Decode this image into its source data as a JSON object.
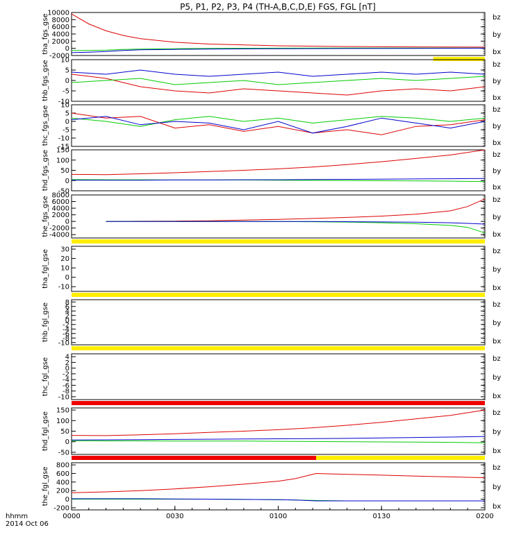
{
  "title": "P5, P1, P2, P3, P4 (TH-A,B,C,D,E) FGS, FGL [nT]",
  "x_axis": {
    "labels": [
      "0000",
      "0030",
      "0100",
      "0130",
      "0200"
    ],
    "corner_label": "hhmm",
    "date_label": "2014 Oct 06"
  },
  "legend": [
    {
      "name": "bz",
      "color": "#dd0000"
    },
    {
      "name": "by",
      "color": "#00cc00"
    },
    {
      "name": "bx",
      "color": "#0000cc"
    }
  ],
  "chart_data": [
    {
      "type": "line",
      "ylabel": "tha_fgs_gse",
      "yticks": [
        10000,
        8000,
        6000,
        4000,
        2000,
        0,
        -2000
      ],
      "ylim": [
        -2000,
        10000
      ],
      "x": [
        0,
        5,
        10,
        15,
        20,
        30,
        40,
        60,
        80,
        100,
        120
      ],
      "series": [
        {
          "name": "bz",
          "color": "#dd0000",
          "values": [
            9600,
            6800,
            4900,
            3600,
            2700,
            1700,
            1200,
            700,
            500,
            400,
            350
          ]
        },
        {
          "name": "by",
          "color": "#00cc00",
          "values": [
            -600,
            -600,
            -500,
            -300,
            -200,
            -100,
            0,
            50,
            80,
            100,
            100
          ]
        },
        {
          "name": "bx",
          "color": "#0000cc",
          "values": [
            -1200,
            -1100,
            -900,
            -600,
            -400,
            -300,
            -200,
            -100,
            -50,
            0,
            50
          ]
        }
      ],
      "status_bar": {
        "color": "#ffee00",
        "from": 105,
        "to": 120
      }
    },
    {
      "type": "line",
      "ylabel": "thb_fgs_gse",
      "yticks": [
        10,
        5,
        0,
        -5,
        -10
      ],
      "ylim": [
        -10,
        10
      ],
      "x": [
        0,
        10,
        20,
        30,
        40,
        50,
        60,
        70,
        80,
        90,
        100,
        110,
        120
      ],
      "series": [
        {
          "name": "bz",
          "color": "#dd0000",
          "values": [
            3,
            1,
            -3,
            -5,
            -6,
            -4,
            -5,
            -6,
            -7,
            -5,
            -4,
            -5,
            -3
          ]
        },
        {
          "name": "by",
          "color": "#00cc00",
          "values": [
            -1,
            0,
            1,
            -2,
            -1,
            0,
            -2,
            -1,
            0,
            1,
            0,
            1,
            2
          ]
        },
        {
          "name": "bx",
          "color": "#0000cc",
          "values": [
            4,
            3,
            5,
            3,
            2,
            3,
            4,
            2,
            3,
            4,
            3,
            4,
            3
          ]
        }
      ]
    },
    {
      "type": "line",
      "ylabel": "thc_fgs_gse",
      "yticks": [
        10,
        5,
        0,
        -5,
        -10,
        -15
      ],
      "ylim": [
        -15,
        10
      ],
      "x": [
        0,
        10,
        20,
        30,
        40,
        50,
        60,
        70,
        80,
        90,
        100,
        110,
        120
      ],
      "series": [
        {
          "name": "bz",
          "color": "#dd0000",
          "values": [
            5,
            2,
            3,
            -4,
            -2,
            -6,
            -3,
            -7,
            -5,
            -8,
            -3,
            -2,
            1
          ]
        },
        {
          "name": "by",
          "color": "#00cc00",
          "values": [
            2,
            0,
            -3,
            1,
            3,
            0,
            2,
            -1,
            1,
            3,
            2,
            0,
            2
          ]
        },
        {
          "name": "bx",
          "color": "#0000cc",
          "values": [
            1,
            3,
            -2,
            0,
            -1,
            -5,
            0,
            -7,
            -3,
            2,
            -1,
            -4,
            0
          ]
        }
      ]
    },
    {
      "type": "line",
      "ylabel": "thd_fgs_gse",
      "yticks": [
        150,
        100,
        50,
        0,
        -50
      ],
      "ylim": [
        -50,
        150
      ],
      "x": [
        0,
        10,
        20,
        30,
        40,
        50,
        60,
        70,
        80,
        90,
        100,
        110,
        120
      ],
      "series": [
        {
          "name": "bz",
          "color": "#dd0000",
          "values": [
            30,
            29,
            33,
            38,
            44,
            50,
            57,
            66,
            78,
            92,
            108,
            125,
            150
          ]
        },
        {
          "name": "by",
          "color": "#00cc00",
          "values": [
            5,
            4,
            4,
            3,
            3,
            3,
            2,
            1,
            0,
            -1,
            -2,
            -3,
            -5
          ]
        },
        {
          "name": "bx",
          "color": "#0000cc",
          "values": [
            2,
            2,
            2,
            3,
            3,
            4,
            4,
            5,
            6,
            7,
            8,
            9,
            10
          ]
        }
      ]
    },
    {
      "type": "line",
      "ylabel": "the_fgs_gse",
      "yticks": [
        8000,
        6000,
        4000,
        2000,
        0,
        -2000,
        -4000
      ],
      "ylim": [
        -5000,
        8000
      ],
      "x": [
        10,
        20,
        30,
        40,
        50,
        60,
        70,
        80,
        90,
        100,
        110,
        115,
        120
      ],
      "series": [
        {
          "name": "bz",
          "color": "#dd0000",
          "values": [
            0,
            50,
            100,
            200,
            400,
            600,
            900,
            1200,
            1600,
            2200,
            3200,
            4500,
            6800
          ]
        },
        {
          "name": "by",
          "color": "#00cc00",
          "values": [
            0,
            0,
            0,
            0,
            0,
            -50,
            -100,
            -200,
            -400,
            -700,
            -1200,
            -1800,
            -3500
          ]
        },
        {
          "name": "bx",
          "color": "#0000cc",
          "values": [
            0,
            0,
            0,
            0,
            0,
            0,
            -20,
            -80,
            -150,
            -250,
            -400,
            -600,
            -800
          ]
        }
      ],
      "status_bar": {
        "color": "#ffee00",
        "from": 0,
        "to": 120
      }
    },
    {
      "type": "line",
      "ylabel": "tha_fgl_gse",
      "yticks": [
        30,
        20,
        10,
        0,
        -10
      ],
      "ylim": [
        -15,
        33
      ],
      "x": [],
      "series": [],
      "status_bar": {
        "color": "#ffee00",
        "from": 0,
        "to": 120
      }
    },
    {
      "type": "line",
      "ylabel": "thb_fgl_gse",
      "yticks": [
        8,
        6,
        4,
        2,
        0,
        -2,
        -4,
        -6,
        -8,
        -10
      ],
      "ylim": [
        -11,
        9
      ],
      "x": [],
      "series": [],
      "status_bar": {
        "color": "#ffee00",
        "from": 0,
        "to": 120
      }
    },
    {
      "type": "line",
      "ylabel": "thc_fgl_gse",
      "yticks": [
        4,
        2,
        0,
        -2,
        -4,
        -6,
        -8,
        -10
      ],
      "ylim": [
        -11,
        5
      ],
      "x": [],
      "series": [],
      "status_bar": {
        "color": "#ee0000",
        "from": 0,
        "to": 120
      }
    },
    {
      "type": "line",
      "ylabel": "thd_fgl_gse",
      "yticks": [
        150,
        100,
        50,
        0,
        -50
      ],
      "ylim": [
        -60,
        160
      ],
      "x": [
        0,
        10,
        20,
        30,
        40,
        50,
        60,
        70,
        80,
        90,
        100,
        110,
        120
      ],
      "series": [
        {
          "name": "bz",
          "color": "#dd0000",
          "values": [
            30,
            29,
            33,
            38,
            44,
            50,
            57,
            66,
            78,
            92,
            108,
            125,
            150
          ]
        },
        {
          "name": "by",
          "color": "#00cc00",
          "values": [
            5,
            4,
            4,
            3,
            3,
            3,
            2,
            1,
            0,
            -1,
            -2,
            -3,
            -5
          ]
        },
        {
          "name": "bx",
          "color": "#0000cc",
          "values": [
            8,
            9,
            10,
            11,
            12,
            13,
            14,
            15,
            16,
            18,
            20,
            22,
            25
          ]
        }
      ],
      "status_bar": {
        "color": "#ee0000",
        "from": 0,
        "to": 71,
        "rest_color": "#ffee00"
      }
    },
    {
      "type": "line",
      "ylabel": "the_fgl_gse",
      "yticks": [
        800,
        600,
        400,
        200,
        0,
        -200
      ],
      "ylim": [
        -250,
        850
      ],
      "x": [
        0,
        10,
        20,
        30,
        40,
        50,
        60,
        65,
        71,
        80,
        90,
        100,
        110,
        120
      ],
      "series": [
        {
          "name": "bz",
          "color": "#dd0000",
          "values": [
            150,
            170,
            200,
            240,
            290,
            350,
            420,
            480,
            600,
            580,
            560,
            540,
            520,
            500
          ]
        },
        {
          "name": "by",
          "color": "#00cc00",
          "values": [
            0,
            0,
            0,
            0,
            0,
            -5,
            -10,
            -20,
            -30,
            -40,
            -40,
            -40,
            -40,
            -40
          ]
        },
        {
          "name": "bx",
          "color": "#0000cc",
          "values": [
            10,
            10,
            10,
            5,
            0,
            -5,
            -10,
            -20,
            -40,
            -40,
            -40,
            -40,
            -40,
            -40
          ]
        }
      ]
    }
  ]
}
